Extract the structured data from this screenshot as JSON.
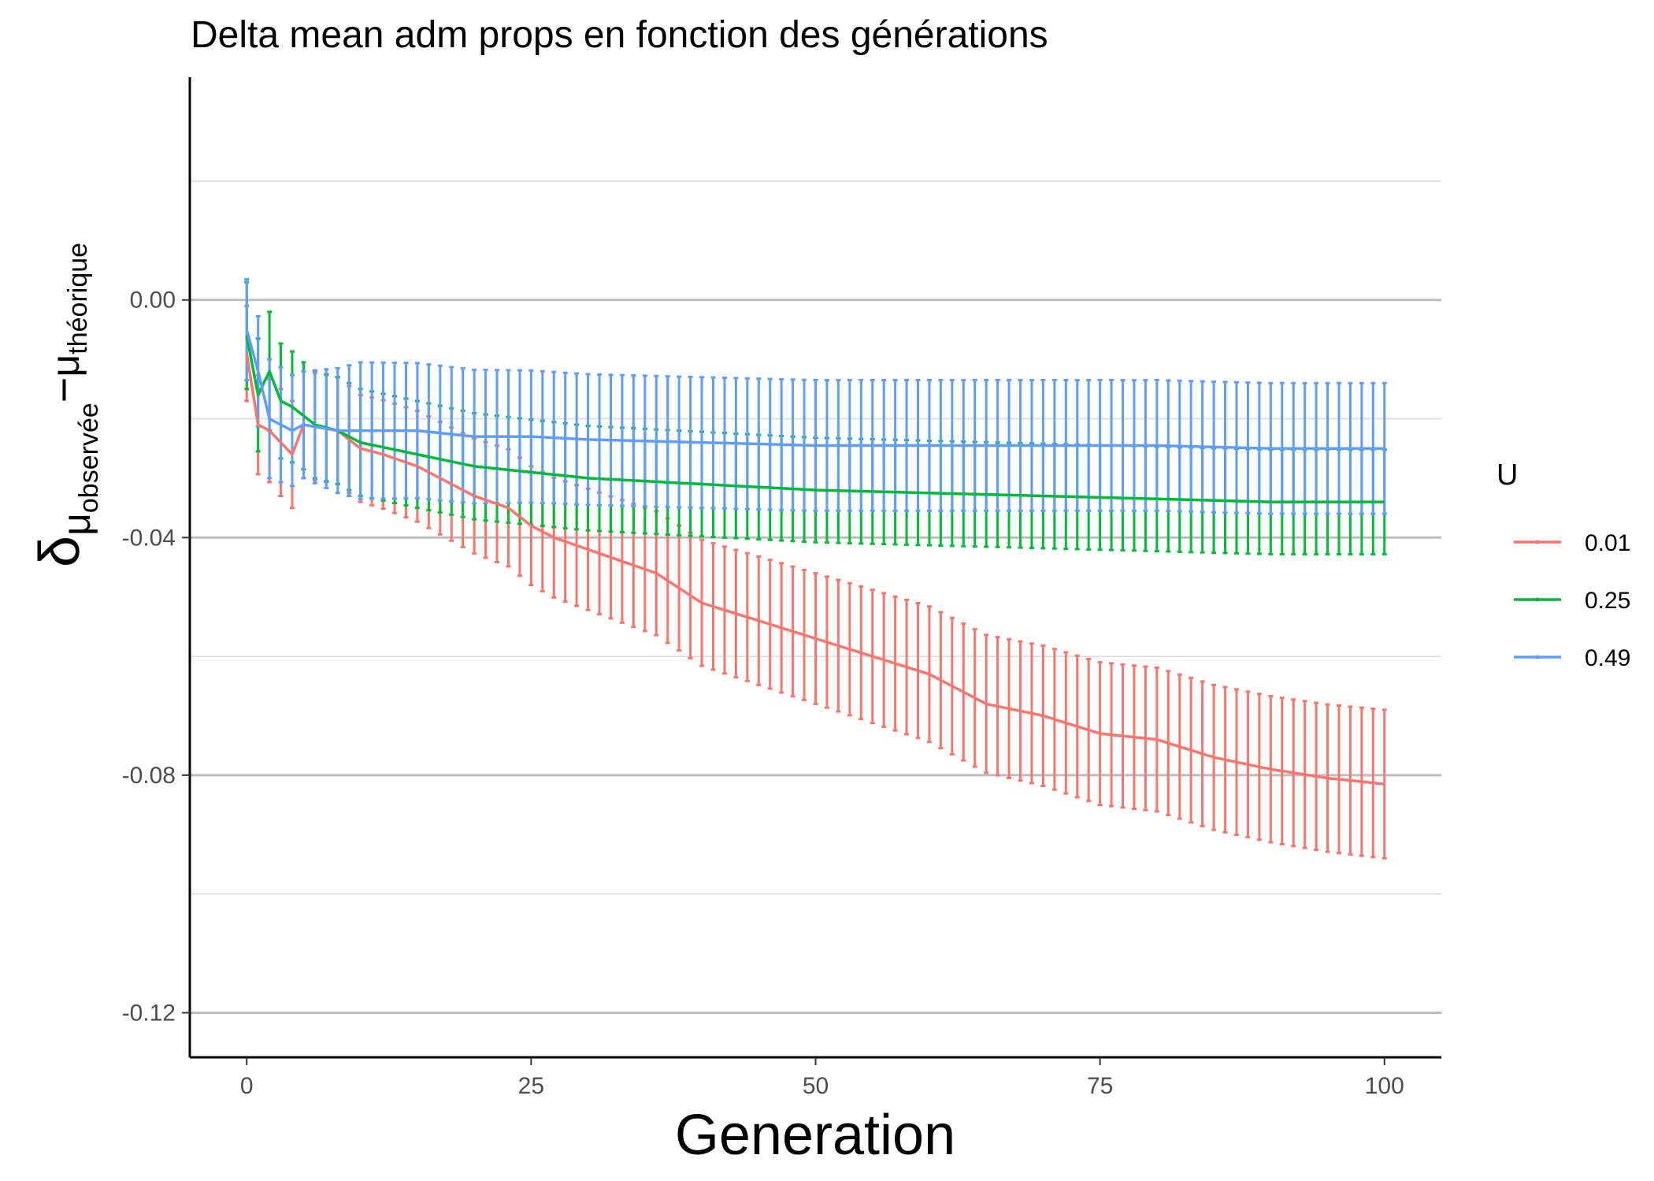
{
  "chart_data": {
    "type": "line",
    "title": "Delta mean adm props en fonction des générations",
    "xlabel": "Generation",
    "ylabel": {
      "symbol": "δ",
      "sub_left": "μ",
      "sub_left_sub": "observée",
      "minus": "−",
      "sub_right": "μ",
      "sub_right_sub": "théorique"
    },
    "xlim": [
      -5,
      105
    ],
    "ylim": [
      -0.1275,
      0.0375
    ],
    "x_ticks": [
      0,
      25,
      50,
      75,
      100
    ],
    "x_tick_labels": [
      "0",
      "25",
      "50",
      "75",
      "100"
    ],
    "y_ticks": [
      0.0,
      -0.04,
      -0.08,
      -0.12
    ],
    "y_tick_labels": [
      "0.00",
      "-0.04",
      "-0.08",
      "-0.12"
    ],
    "grid": true,
    "legend": {
      "title": "U",
      "position": "right"
    },
    "series": [
      {
        "name": "0.01",
        "color": "#F8766D",
        "anchors": [
          [
            0,
            -0.009
          ],
          [
            1,
            -0.021
          ],
          [
            2,
            -0.022
          ],
          [
            4,
            -0.026
          ],
          [
            5,
            -0.021
          ],
          [
            8,
            -0.022
          ],
          [
            10,
            -0.025
          ],
          [
            12,
            -0.026
          ],
          [
            15,
            -0.028
          ],
          [
            18,
            -0.031
          ],
          [
            20,
            -0.033
          ],
          [
            23,
            -0.035
          ],
          [
            25,
            -0.038
          ],
          [
            27,
            -0.04
          ],
          [
            30,
            -0.042
          ],
          [
            33,
            -0.044
          ],
          [
            36,
            -0.046
          ],
          [
            40,
            -0.051
          ],
          [
            45,
            -0.054
          ],
          [
            50,
            -0.057
          ],
          [
            55,
            -0.06
          ],
          [
            60,
            -0.063
          ],
          [
            65,
            -0.068
          ],
          [
            70,
            -0.07
          ],
          [
            75,
            -0.073
          ],
          [
            80,
            -0.074
          ],
          [
            85,
            -0.077
          ],
          [
            90,
            -0.079
          ],
          [
            95,
            -0.0805
          ],
          [
            100,
            -0.0815
          ]
        ],
        "err_anchors": [
          [
            0,
            0.008
          ],
          [
            3,
            0.009
          ],
          [
            10,
            0.009
          ],
          [
            25,
            0.01
          ],
          [
            50,
            0.011
          ],
          [
            75,
            0.012
          ],
          [
            100,
            0.0125
          ]
        ]
      },
      {
        "name": "0.25",
        "color": "#00BA38",
        "anchors": [
          [
            0,
            -0.006
          ],
          [
            1,
            -0.016
          ],
          [
            2,
            -0.012
          ],
          [
            3,
            -0.017
          ],
          [
            4,
            -0.018
          ],
          [
            6,
            -0.021
          ],
          [
            8,
            -0.022
          ],
          [
            10,
            -0.024
          ],
          [
            15,
            -0.026
          ],
          [
            20,
            -0.028
          ],
          [
            25,
            -0.029
          ],
          [
            30,
            -0.03
          ],
          [
            40,
            -0.031
          ],
          [
            50,
            -0.032
          ],
          [
            60,
            -0.0325
          ],
          [
            70,
            -0.033
          ],
          [
            80,
            -0.0335
          ],
          [
            90,
            -0.034
          ],
          [
            100,
            -0.034
          ]
        ],
        "err_anchors": [
          [
            0,
            0.009
          ],
          [
            2,
            0.01
          ],
          [
            5,
            0.009
          ],
          [
            15,
            0.009
          ],
          [
            30,
            0.0088
          ],
          [
            60,
            0.0088
          ],
          [
            100,
            0.0088
          ]
        ]
      },
      {
        "name": "0.49",
        "color": "#619CFF",
        "anchors": [
          [
            0,
            -0.005
          ],
          [
            1,
            -0.012
          ],
          [
            2,
            -0.02
          ],
          [
            3,
            -0.021
          ],
          [
            4,
            -0.022
          ],
          [
            5,
            -0.021
          ],
          [
            8,
            -0.022
          ],
          [
            10,
            -0.022
          ],
          [
            15,
            -0.022
          ],
          [
            20,
            -0.023
          ],
          [
            25,
            -0.023
          ],
          [
            30,
            -0.0235
          ],
          [
            40,
            -0.024
          ],
          [
            50,
            -0.0245
          ],
          [
            60,
            -0.0245
          ],
          [
            70,
            -0.0245
          ],
          [
            80,
            -0.0245
          ],
          [
            90,
            -0.025
          ],
          [
            100,
            -0.025
          ]
        ],
        "err_anchors": [
          [
            0,
            0.0085
          ],
          [
            2,
            0.01
          ],
          [
            5,
            0.009
          ],
          [
            10,
            0.0115
          ],
          [
            30,
            0.011
          ],
          [
            60,
            0.011
          ],
          [
            100,
            0.011
          ]
        ]
      }
    ]
  }
}
